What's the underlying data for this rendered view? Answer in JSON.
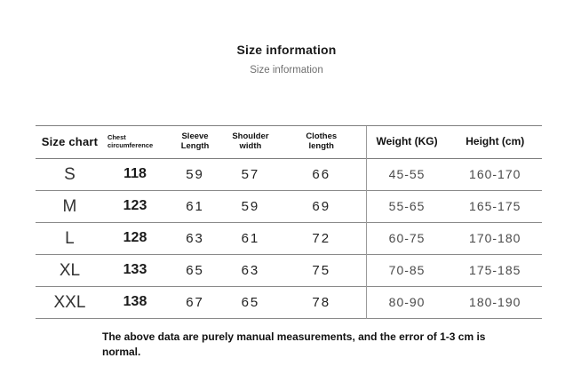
{
  "title": "Size information",
  "subtitle": "Size information",
  "note": "The above data are purely manual measurements, and the error of 1-3 cm is normal.",
  "table": {
    "headers": [
      "Size chart",
      "Chest\ncircumference",
      "Sleeve\nLength",
      "Shoulder\nwidth",
      "Clothes\nlength",
      "Weight (KG)",
      "Height (cm)"
    ],
    "rows": [
      {
        "cells": [
          "S",
          "118",
          "59",
          "57",
          "66",
          "45-55",
          "160-170"
        ]
      },
      {
        "cells": [
          "M",
          "123",
          "61",
          "59",
          "69",
          "55-65",
          "165-175"
        ]
      },
      {
        "cells": [
          "L",
          "128",
          "63",
          "61",
          "72",
          "60-75",
          "170-180"
        ]
      },
      {
        "cells": [
          "XL",
          "133",
          "65",
          "63",
          "75",
          "70-85",
          "175-185"
        ]
      },
      {
        "cells": [
          "XXL",
          "138",
          "67",
          "65",
          "78",
          "80-90",
          "180-190"
        ]
      }
    ]
  },
  "chart_data": {
    "type": "table",
    "title": "Size information",
    "columns": [
      "Size chart",
      "Chest circumference",
      "Sleeve Length",
      "Shoulder width",
      "Clothes length",
      "Weight (KG)",
      "Height (cm)"
    ],
    "rows": [
      {
        "size": "S",
        "chest_circumference": 118,
        "sleeve_length": 59,
        "shoulder_width": 57,
        "clothes_length": 66,
        "weight_kg": "45-55",
        "height_cm": "160-170"
      },
      {
        "size": "M",
        "chest_circumference": 123,
        "sleeve_length": 61,
        "shoulder_width": 59,
        "clothes_length": 69,
        "weight_kg": "55-65",
        "height_cm": "165-175"
      },
      {
        "size": "L",
        "chest_circumference": 128,
        "sleeve_length": 63,
        "shoulder_width": 61,
        "clothes_length": 72,
        "weight_kg": "60-75",
        "height_cm": "170-180"
      },
      {
        "size": "XL",
        "chest_circumference": 133,
        "sleeve_length": 65,
        "shoulder_width": 63,
        "clothes_length": 75,
        "weight_kg": "70-85",
        "height_cm": "175-185"
      },
      {
        "size": "XXL",
        "chest_circumference": 138,
        "sleeve_length": 67,
        "shoulder_width": 65,
        "clothes_length": 78,
        "weight_kg": "80-90",
        "height_cm": "180-190"
      }
    ],
    "note": "The above data are purely manual measurements, and the error of 1-3 cm is normal.",
    "layout": {
      "divider_after_column": "Clothes length",
      "grid": "horizontal-lines-only"
    }
  }
}
